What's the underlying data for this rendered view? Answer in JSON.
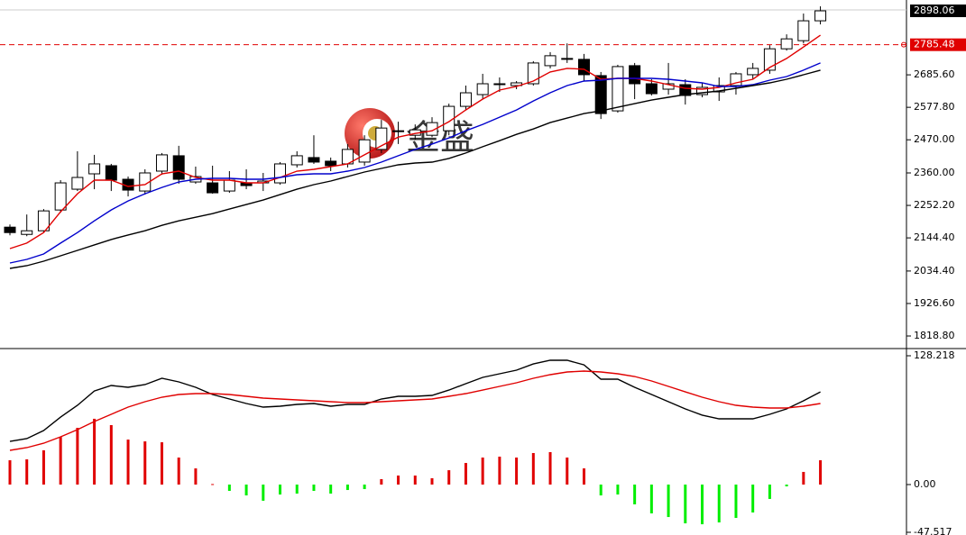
{
  "watermark": "金盛",
  "chart_data": [
    {
      "type": "candlestick",
      "ylim": [
        1780,
        2934
      ],
      "yticks": [
        {
          "value": 1818.8,
          "label": "1818.80"
        },
        {
          "value": 1926.6,
          "label": "1926.60"
        },
        {
          "value": 2034.4,
          "label": "2034.40"
        },
        {
          "value": 2144.4,
          "label": "2144.40"
        },
        {
          "value": 2252.2,
          "label": "2252.20"
        },
        {
          "value": 2360,
          "label": "2360.00"
        },
        {
          "value": 2470,
          "label": "2470.00"
        },
        {
          "value": 2577.8,
          "label": "2577.80"
        },
        {
          "value": 2685.6,
          "label": "2685.60"
        }
      ],
      "ref_line": 2785.48,
      "up_color": "#ffffff",
      "down_color": "#000000",
      "open": [
        2180,
        2156,
        2168,
        2237,
        2306,
        2357,
        2384,
        2339,
        2300,
        2366,
        2417,
        2330,
        2327,
        2300,
        2327,
        2327,
        2327,
        2387,
        2411,
        2399,
        2390,
        2396,
        2438,
        2497,
        2485,
        2485,
        2500,
        2581,
        2620,
        2653,
        2650,
        2656,
        2716,
        2740,
        2737,
        2683,
        2566,
        2716,
        2656,
        2638,
        2653,
        2620,
        2629,
        2650,
        2686,
        2701,
        2772,
        2799,
        2865
      ],
      "high": [
        2189,
        2222,
        2240,
        2336,
        2432,
        2420,
        2390,
        2348,
        2372,
        2426,
        2450,
        2381,
        2384,
        2366,
        2372,
        2360,
        2396,
        2432,
        2485,
        2411,
        2456,
        2485,
        2536,
        2530,
        2521,
        2545,
        2590,
        2650,
        2689,
        2677,
        2665,
        2731,
        2761,
        2790,
        2755,
        2695,
        2719,
        2725,
        2671,
        2725,
        2671,
        2659,
        2677,
        2695,
        2725,
        2784,
        2820,
        2889,
        2913
      ],
      "low": [
        2153,
        2150,
        2162,
        2228,
        2300,
        2306,
        2300,
        2282,
        2288,
        2354,
        2324,
        2324,
        2291,
        2294,
        2306,
        2300,
        2321,
        2378,
        2390,
        2366,
        2378,
        2384,
        2426,
        2456,
        2470,
        2479,
        2485,
        2569,
        2605,
        2629,
        2638,
        2650,
        2707,
        2725,
        2665,
        2539,
        2560,
        2605,
        2617,
        2620,
        2587,
        2611,
        2599,
        2620,
        2671,
        2689,
        2766,
        2790,
        2853
      ],
      "close": [
        2162,
        2168,
        2234,
        2327,
        2345,
        2390,
        2336,
        2303,
        2360,
        2420,
        2339,
        2348,
        2294,
        2336,
        2318,
        2333,
        2390,
        2417,
        2396,
        2384,
        2438,
        2470,
        2509,
        2500,
        2503,
        2527,
        2581,
        2626,
        2656,
        2656,
        2659,
        2725,
        2749,
        2737,
        2686,
        2557,
        2713,
        2656,
        2623,
        2656,
        2617,
        2644,
        2650,
        2689,
        2707,
        2772,
        2805,
        2865,
        2898.06
      ],
      "series": [
        {
          "color": "#e00000",
          "values": [
            2109,
            2127,
            2162,
            2231,
            2291,
            2336,
            2336,
            2315,
            2321,
            2357,
            2366,
            2345,
            2336,
            2336,
            2327,
            2327,
            2345,
            2366,
            2372,
            2381,
            2390,
            2420,
            2450,
            2479,
            2491,
            2500,
            2530,
            2569,
            2605,
            2635,
            2647,
            2665,
            2695,
            2707,
            2704,
            2671,
            2674,
            2674,
            2665,
            2653,
            2641,
            2638,
            2644,
            2659,
            2671,
            2710,
            2740,
            2778,
            2817
          ]
        },
        {
          "color": "#0000cc",
          "values": [
            2061,
            2073,
            2091,
            2127,
            2162,
            2201,
            2237,
            2267,
            2291,
            2312,
            2330,
            2339,
            2342,
            2342,
            2339,
            2339,
            2345,
            2354,
            2357,
            2357,
            2366,
            2378,
            2396,
            2417,
            2438,
            2456,
            2476,
            2500,
            2521,
            2545,
            2569,
            2599,
            2626,
            2650,
            2665,
            2668,
            2674,
            2674,
            2674,
            2671,
            2665,
            2659,
            2647,
            2647,
            2653,
            2668,
            2680,
            2701,
            2725
          ]
        },
        {
          "color": "#000000",
          "values": [
            2043,
            2052,
            2067,
            2085,
            2103,
            2121,
            2139,
            2154,
            2168,
            2186,
            2201,
            2213,
            2225,
            2240,
            2255,
            2270,
            2288,
            2306,
            2321,
            2333,
            2348,
            2363,
            2375,
            2387,
            2393,
            2396,
            2408,
            2426,
            2447,
            2467,
            2488,
            2506,
            2527,
            2542,
            2557,
            2566,
            2578,
            2590,
            2602,
            2611,
            2620,
            2626,
            2632,
            2641,
            2650,
            2659,
            2671,
            2686,
            2701
          ]
        }
      ]
    },
    {
      "type": "macd",
      "ylim": [
        -50.2,
        134.5
      ],
      "yticks": [
        128.218,
        {
          "value": 0,
          "label": "0.00"
        },
        -47.517
      ],
      "pos_color": "#e00000",
      "neg_color": "#00ee00",
      "values": [
        24.2,
        25.1,
        34.1,
        47.5,
        56.5,
        65.5,
        59.2,
        44.8,
        43.0,
        42.1,
        26.9,
        16.1,
        0.5,
        -6.3,
        -10.8,
        -16.1,
        -9.9,
        -9.0,
        -6.3,
        -9.0,
        -5.4,
        -4.5,
        5.4,
        9.0,
        9.0,
        6.3,
        14.3,
        21.5,
        26.9,
        27.8,
        26.9,
        31.4,
        32.3,
        26.9,
        16.1,
        -10.8,
        -9.9,
        -19.7,
        -28.7,
        -32.3,
        -38.6,
        -39.5,
        -37.7,
        -33.2,
        -27.8,
        -14.3,
        -1.8,
        12.6,
        24.2
      ],
      "series": [
        {
          "color": "#000000",
          "values": [
            43.0,
            45.7,
            53.8,
            67.2,
            78.9,
            93.2,
            98.6,
            96.8,
            99.5,
            105.8,
            102.2,
            96.8,
            89.7,
            85.2,
            80.7,
            77.1,
            78.0,
            79.8,
            80.7,
            78.0,
            79.8,
            79.8,
            85.2,
            87.9,
            87.9,
            88.8,
            94.1,
            100.4,
            106.7,
            110.3,
            113.9,
            120.1,
            123.7,
            123.7,
            119.2,
            104.9,
            104.9,
            96.8,
            89.7,
            82.5,
            75.3,
            69.1,
            65.5,
            65.5,
            65.5,
            69.9,
            75.3,
            83.4,
            92.3
          ]
        },
        {
          "color": "#e00000",
          "values": [
            34.1,
            36.8,
            41.2,
            47.5,
            54.7,
            62.8,
            69.9,
            77.1,
            82.5,
            87.0,
            89.7,
            90.6,
            90.6,
            89.7,
            87.9,
            86.1,
            85.2,
            84.3,
            83.4,
            82.5,
            81.6,
            81.6,
            82.5,
            83.4,
            84.3,
            85.2,
            87.9,
            90.6,
            94.1,
            97.7,
            101.3,
            105.8,
            109.4,
            112.1,
            113.0,
            112.1,
            110.3,
            107.6,
            103.1,
            97.7,
            92.3,
            87.0,
            82.5,
            78.9,
            77.1,
            76.2,
            76.2,
            78.0,
            80.7
          ]
        }
      ]
    }
  ]
}
